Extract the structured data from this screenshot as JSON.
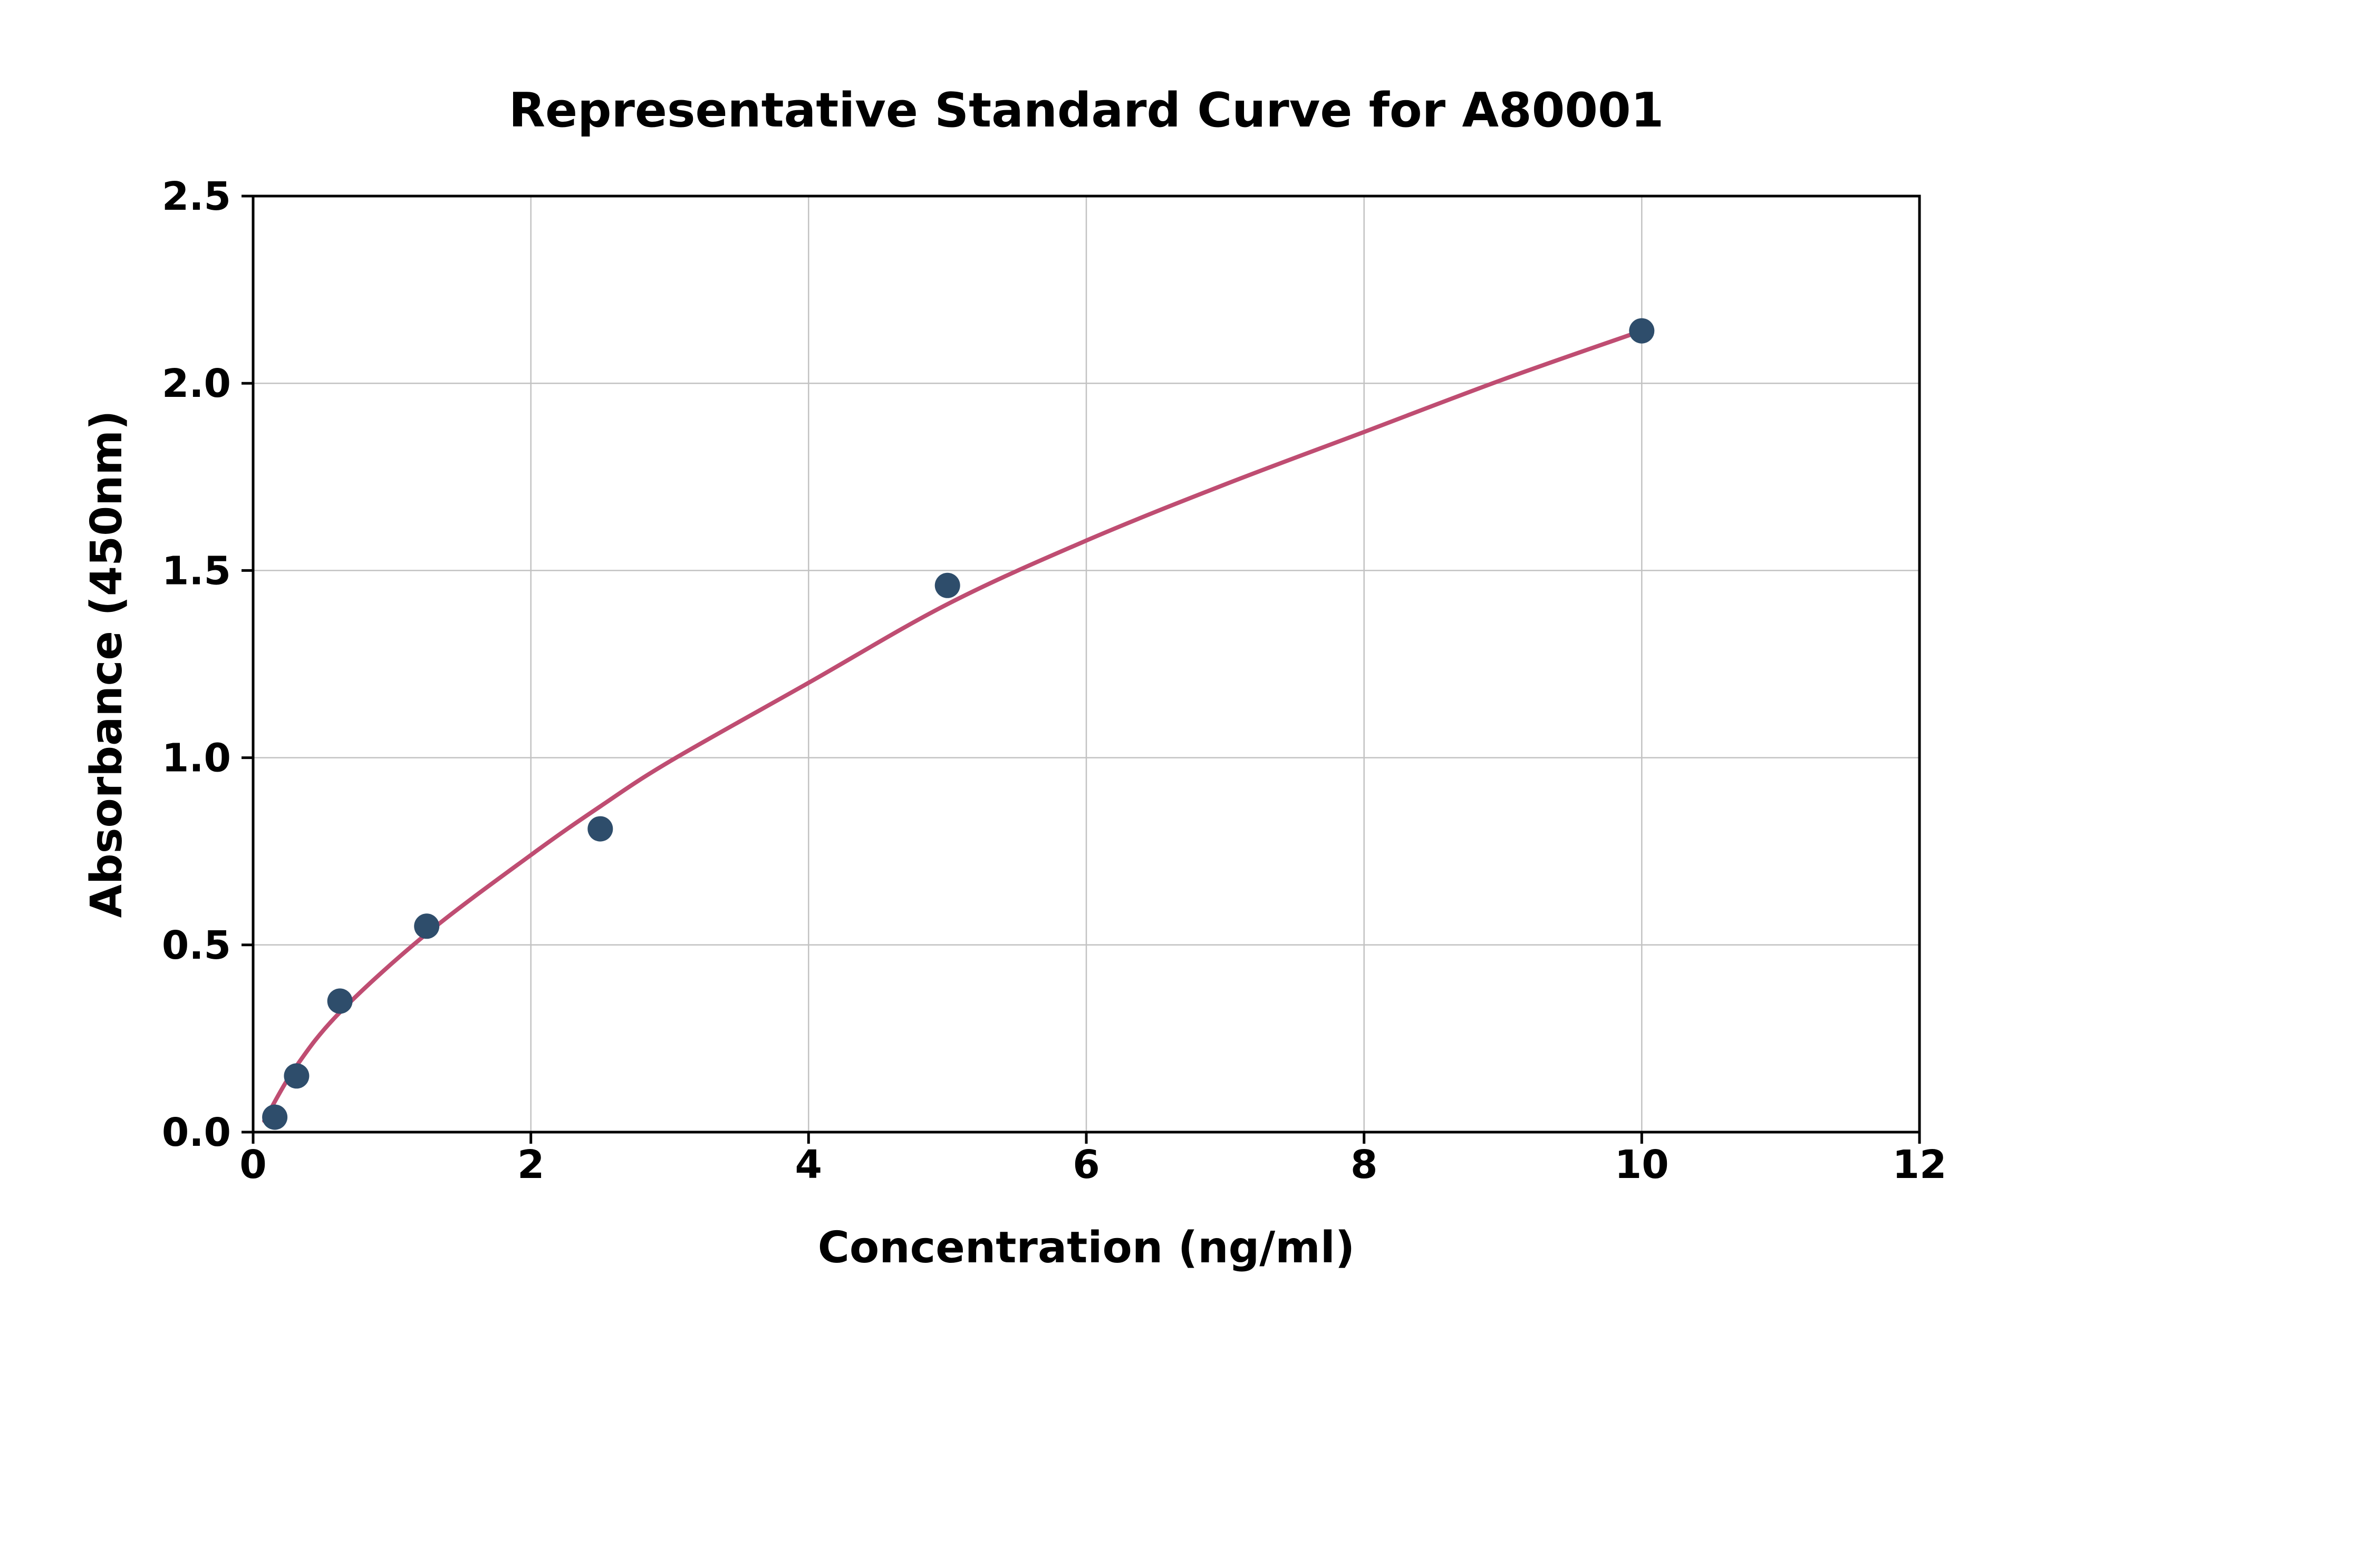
{
  "figure": {
    "background": "#ffffff"
  },
  "chart_data": {
    "type": "scatter",
    "title": "Representative Standard Curve for A80001",
    "xlabel": "Concentration (ng/ml)",
    "ylabel": "Absorbance (450nm)",
    "xlim": [
      0,
      12
    ],
    "ylim": [
      0,
      2.5
    ],
    "grid": true,
    "grid_color": "#c2c2c2",
    "border_color": "#000000",
    "xticks": {
      "values": [
        0,
        2,
        4,
        6,
        8,
        10,
        12
      ],
      "labels": [
        "0",
        "2",
        "4",
        "6",
        "8",
        "10",
        "12"
      ]
    },
    "yticks": {
      "values": [
        0,
        0.5,
        1.0,
        1.5,
        2.0,
        2.5
      ],
      "labels": [
        "0.0",
        "0.5",
        "1.0",
        "1.5",
        "2.0",
        "2.5"
      ]
    },
    "series": [
      {
        "name": "standard-points",
        "type": "scatter",
        "color": "#2e4d6b",
        "marker_radius": 24,
        "x": [
          0.156,
          0.313,
          0.625,
          1.25,
          2.5,
          5,
          10
        ],
        "y": [
          0.04,
          0.15,
          0.35,
          0.55,
          0.81,
          1.46,
          2.14
        ]
      },
      {
        "name": "fit-curve",
        "type": "line",
        "color": "#bf4d72",
        "line_width": 8,
        "x": [
          0.08,
          0.3,
          0.625,
          1.25,
          2.0,
          2.5,
          3.0,
          4.0,
          5.0,
          6.0,
          7.0,
          8.0,
          9.0,
          10.0
        ],
        "y": [
          0.03,
          0.17,
          0.32,
          0.53,
          0.74,
          0.87,
          0.99,
          1.2,
          1.41,
          1.58,
          1.73,
          1.87,
          2.01,
          2.14
        ]
      }
    ]
  }
}
